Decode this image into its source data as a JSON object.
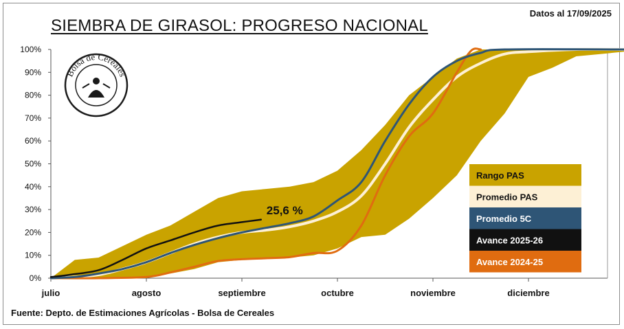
{
  "header": {
    "title": "SIEMBRA DE GIRASOL: PROGRESO NACIONAL",
    "date_note": "Datos al 17/09/2025"
  },
  "footer": {
    "source": "Fuente: Depto. de Estimaciones Agrícolas - Bolsa de Cereales"
  },
  "logo": {
    "text": "Bolsa de Cereales"
  },
  "colors": {
    "range": "#c9a300",
    "promedio_pas": "#fdf0d5",
    "promedio_5c": "#2e5576",
    "avance_2025_26": "#111111",
    "avance_2024_25": "#e06c10"
  },
  "chart_data": {
    "type": "area",
    "title": "SIEMBRA DE GIRASOL: PROGRESO NACIONAL",
    "xlabel": "",
    "ylabel": "",
    "x_unit": "months since July 1",
    "x_ticks": [
      {
        "x": 0,
        "label": "julio"
      },
      {
        "x": 1,
        "label": "agosto"
      },
      {
        "x": 2,
        "label": "septiembre"
      },
      {
        "x": 3,
        "label": "octubre"
      },
      {
        "x": 4,
        "label": "noviembre"
      },
      {
        "x": 5,
        "label": "diciembre"
      }
    ],
    "xlim": [
      0,
      6
    ],
    "ylim": [
      0,
      100
    ],
    "y_ticks": [
      "0%",
      "10%",
      "20%",
      "30%",
      "40%",
      "50%",
      "60%",
      "70%",
      "80%",
      "90%",
      "100%"
    ],
    "grid": false,
    "legend_position": "right",
    "annotation": "25,6 %",
    "series": [
      {
        "name": "Rango PAS",
        "kind": "band",
        "upper": [
          [
            0,
            0
          ],
          [
            0.25,
            8
          ],
          [
            0.5,
            9
          ],
          [
            0.75,
            14
          ],
          [
            1,
            19
          ],
          [
            1.25,
            23
          ],
          [
            1.5,
            29
          ],
          [
            1.75,
            35
          ],
          [
            2,
            38
          ],
          [
            2.25,
            39
          ],
          [
            2.5,
            40
          ],
          [
            2.75,
            42
          ],
          [
            3,
            47
          ],
          [
            3.25,
            56
          ],
          [
            3.5,
            67
          ],
          [
            3.75,
            80
          ],
          [
            4,
            88
          ],
          [
            4.25,
            96
          ],
          [
            4.5,
            100
          ],
          [
            6,
            100
          ]
        ],
        "lower": [
          [
            0,
            0
          ],
          [
            0.25,
            0
          ],
          [
            0.5,
            0
          ],
          [
            0.75,
            0
          ],
          [
            1,
            0
          ],
          [
            1.25,
            2
          ],
          [
            1.5,
            4
          ],
          [
            1.75,
            7
          ],
          [
            2,
            8
          ],
          [
            2.25,
            8.5
          ],
          [
            2.5,
            9
          ],
          [
            2.75,
            10
          ],
          [
            3,
            13
          ],
          [
            3.25,
            18
          ],
          [
            3.5,
            19
          ],
          [
            3.75,
            26
          ],
          [
            4,
            35
          ],
          [
            4.25,
            45
          ],
          [
            4.5,
            60
          ],
          [
            4.75,
            72
          ],
          [
            5,
            88
          ],
          [
            5.25,
            92
          ],
          [
            5.5,
            97
          ],
          [
            5.75,
            98
          ],
          [
            6,
            99
          ]
        ]
      },
      {
        "name": "Promedio PAS",
        "kind": "line",
        "points": [
          [
            0,
            0
          ],
          [
            0.25,
            0.5
          ],
          [
            0.5,
            1.5
          ],
          [
            0.75,
            4
          ],
          [
            1,
            7
          ],
          [
            1.25,
            11
          ],
          [
            1.5,
            15
          ],
          [
            1.75,
            18
          ],
          [
            2,
            20
          ],
          [
            2.25,
            21
          ],
          [
            2.5,
            22.5
          ],
          [
            2.75,
            25
          ],
          [
            3,
            29
          ],
          [
            3.25,
            36
          ],
          [
            3.5,
            50
          ],
          [
            3.75,
            66
          ],
          [
            4,
            78
          ],
          [
            4.25,
            88
          ],
          [
            4.5,
            94
          ],
          [
            4.75,
            98
          ],
          [
            5,
            99
          ],
          [
            5.5,
            100
          ],
          [
            6,
            100
          ]
        ]
      },
      {
        "name": "Promedio 5C",
        "kind": "line",
        "points": [
          [
            0,
            0
          ],
          [
            0.25,
            0.5
          ],
          [
            0.5,
            2
          ],
          [
            0.75,
            4
          ],
          [
            1,
            7
          ],
          [
            1.25,
            11
          ],
          [
            1.5,
            14.5
          ],
          [
            1.75,
            17.5
          ],
          [
            2,
            20
          ],
          [
            2.25,
            22
          ],
          [
            2.5,
            24
          ],
          [
            2.75,
            27
          ],
          [
            3,
            34
          ],
          [
            3.25,
            42
          ],
          [
            3.5,
            60
          ],
          [
            3.75,
            76
          ],
          [
            4,
            88
          ],
          [
            4.25,
            95
          ],
          [
            4.5,
            98.5
          ],
          [
            4.75,
            100
          ],
          [
            6,
            100
          ]
        ]
      },
      {
        "name": "Avance 2025-26",
        "kind": "line",
        "points": [
          [
            0,
            0.5
          ],
          [
            0.2,
            1.5
          ],
          [
            0.5,
            3.5
          ],
          [
            0.75,
            8
          ],
          [
            1,
            13
          ],
          [
            1.25,
            16.5
          ],
          [
            1.5,
            20
          ],
          [
            1.75,
            23
          ],
          [
            2,
            24.5
          ],
          [
            2.2,
            25.6
          ]
        ]
      },
      {
        "name": "Avance 2024-25",
        "kind": "line",
        "points": [
          [
            0,
            0
          ],
          [
            0.5,
            0
          ],
          [
            1,
            0.5
          ],
          [
            1.25,
            2.5
          ],
          [
            1.5,
            5
          ],
          [
            1.75,
            7.5
          ],
          [
            2,
            8.3
          ],
          [
            2.25,
            8.7
          ],
          [
            2.5,
            9.2
          ],
          [
            2.75,
            11
          ],
          [
            3,
            12
          ],
          [
            3.25,
            23
          ],
          [
            3.5,
            45
          ],
          [
            3.75,
            62
          ],
          [
            4,
            72
          ],
          [
            4.25,
            90
          ],
          [
            4.4,
            99.5
          ],
          [
            4.5,
            100
          ]
        ]
      }
    ]
  }
}
